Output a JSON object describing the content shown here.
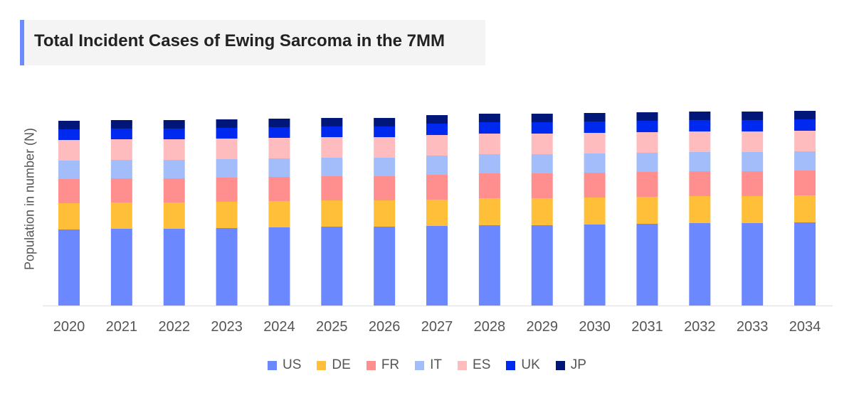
{
  "chart_data": {
    "type": "bar",
    "stacked": true,
    "title": "Total Incident Cases of Ewing Sarcoma in the 7MM",
    "xlabel": "",
    "ylabel": "Population in number (N)",
    "y_tick_labels_shown": false,
    "grid": false,
    "legend_position": "bottom",
    "ylim": [
      0,
      290
    ],
    "categories": [
      "2020",
      "2021",
      "2022",
      "2023",
      "2024",
      "2025",
      "2026",
      "2027",
      "2028",
      "2029",
      "2030",
      "2031",
      "2032",
      "2033",
      "2034"
    ],
    "series": [
      {
        "name": "US",
        "color": "#6b88ff",
        "values": [
          107,
          108,
          108,
          109,
          110,
          111,
          111,
          112,
          113,
          113,
          114,
          115,
          116,
          116,
          117
        ]
      },
      {
        "name": "DE",
        "color": "#ffbf38",
        "values": [
          37,
          37,
          37,
          37,
          37,
          37,
          37,
          37,
          38,
          38,
          38,
          38,
          38,
          38,
          38
        ]
      },
      {
        "name": "FR",
        "color": "#ff8f8f",
        "values": [
          34,
          34,
          34,
          34,
          34,
          34,
          34,
          35,
          35,
          35,
          35,
          35,
          35,
          35,
          35
        ]
      },
      {
        "name": "IT",
        "color": "#a3bdfa",
        "values": [
          26,
          26,
          26,
          26,
          26,
          26,
          26,
          27,
          27,
          27,
          27,
          27,
          27,
          27,
          27
        ]
      },
      {
        "name": "ES",
        "color": "#ffbcbf",
        "values": [
          29,
          29,
          29,
          29,
          29,
          29,
          29,
          29,
          29,
          29,
          29,
          29,
          29,
          29,
          29
        ]
      },
      {
        "name": "UK",
        "color": "#0029f0",
        "values": [
          15,
          15,
          15,
          15,
          15,
          15,
          15,
          16,
          16,
          16,
          16,
          16,
          16,
          16,
          16
        ]
      },
      {
        "name": "JP",
        "color": "#001678",
        "values": [
          12,
          12,
          12,
          12,
          12,
          12,
          12,
          12,
          12,
          12,
          12,
          12,
          12,
          12,
          12
        ]
      }
    ]
  }
}
